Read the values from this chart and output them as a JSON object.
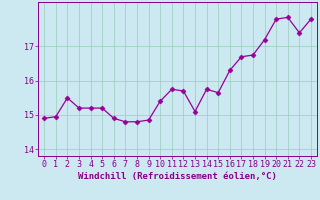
{
  "x": [
    0,
    1,
    2,
    3,
    4,
    5,
    6,
    7,
    8,
    9,
    10,
    11,
    12,
    13,
    14,
    15,
    16,
    17,
    18,
    19,
    20,
    21,
    22,
    23
  ],
  "y": [
    14.9,
    14.95,
    15.5,
    15.2,
    15.2,
    15.2,
    14.9,
    14.8,
    14.8,
    14.85,
    15.4,
    15.75,
    15.7,
    15.1,
    15.75,
    15.65,
    16.3,
    16.7,
    16.75,
    17.2,
    17.8,
    17.85,
    17.4,
    17.8
  ],
  "line_color": "#990099",
  "marker": "D",
  "marker_size": 2.5,
  "bg_color": "#cce8f0",
  "grid_color": "#99ccbb",
  "xlabel": "Windchill (Refroidissement éolien,°C)",
  "ylim": [
    13.8,
    18.3
  ],
  "xlim": [
    -0.5,
    23.5
  ],
  "yticks": [
    14,
    15,
    16,
    17
  ],
  "xticks": [
    0,
    1,
    2,
    3,
    4,
    5,
    6,
    7,
    8,
    9,
    10,
    11,
    12,
    13,
    14,
    15,
    16,
    17,
    18,
    19,
    20,
    21,
    22,
    23
  ],
  "tick_color": "#880088",
  "label_fontsize": 6.5,
  "tick_fontsize": 6.0
}
